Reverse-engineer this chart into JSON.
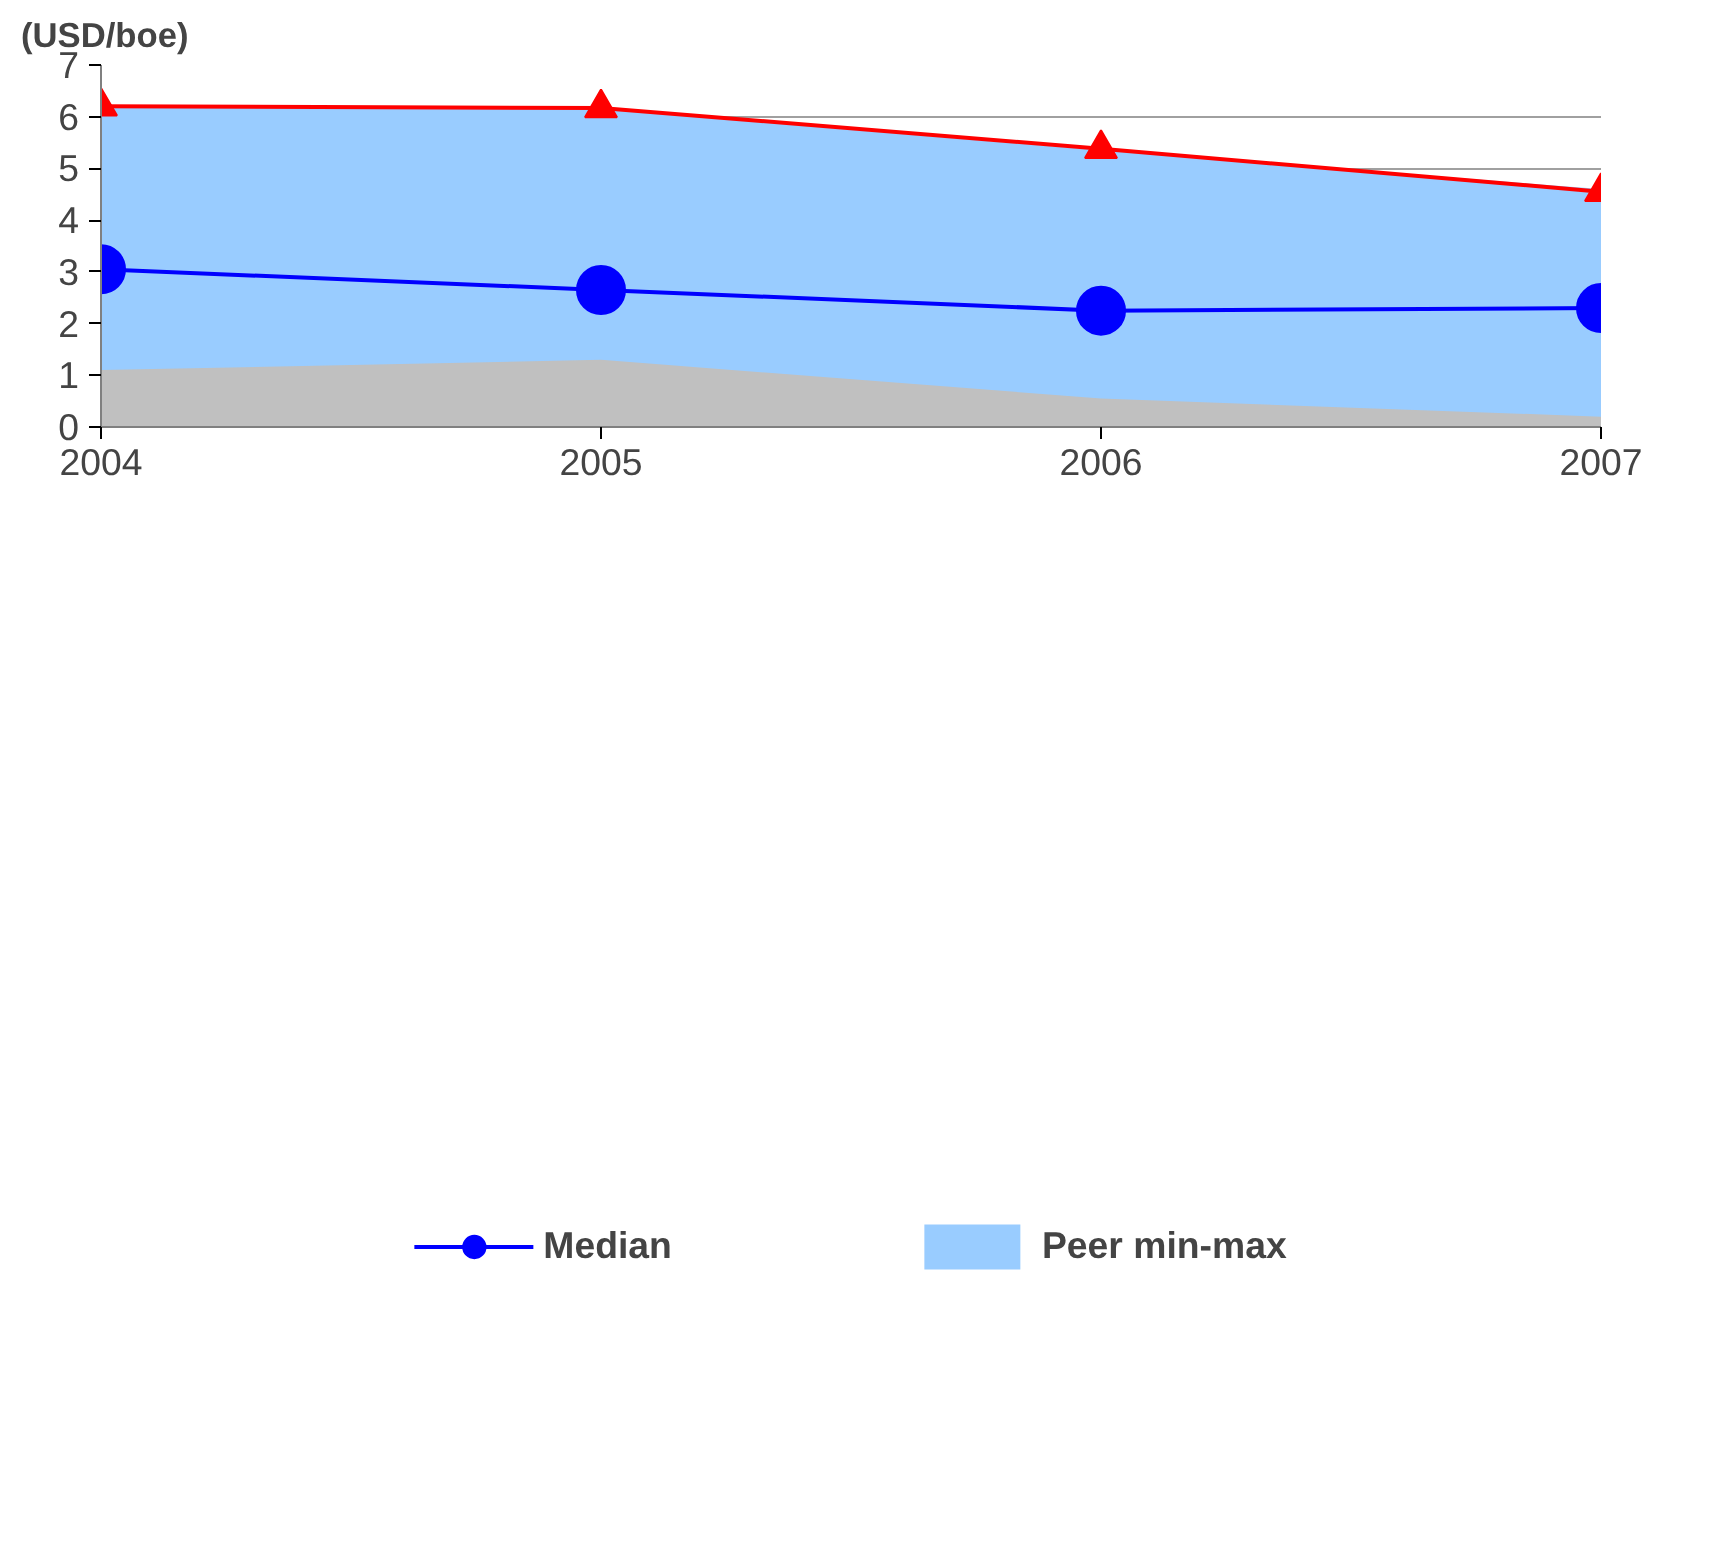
{
  "chart_data": {
    "type": "line",
    "ylabel": "(USD/boe)",
    "x": [
      2004,
      2005,
      2006,
      2007
    ],
    "xlim": [
      2004,
      2007
    ],
    "xticks": [
      2004,
      2005,
      2006,
      2007
    ],
    "ylim": [
      0,
      7
    ],
    "yticks": [
      0,
      1,
      2,
      3,
      4,
      5,
      6,
      7
    ],
    "grid": "y",
    "legend": "bottom",
    "series": [
      {
        "name": "Peer min-max",
        "type": "area",
        "color": "#99ccff",
        "values": [
          6.2,
          6.15,
          5.35,
          4.6
        ]
      },
      {
        "type": "area",
        "color": "#c0c0c0",
        "values": [
          1.1,
          1.3,
          0.55,
          0.2
        ]
      },
      {
        "color": "#ff0000",
        "marker": "triangle",
        "values": [
          6.2,
          6.17,
          5.38,
          4.55
        ]
      },
      {
        "name": "Median",
        "color": "#0000ff",
        "marker": "circle",
        "values": [
          3.05,
          2.65,
          2.25,
          2.3
        ]
      }
    ]
  }
}
